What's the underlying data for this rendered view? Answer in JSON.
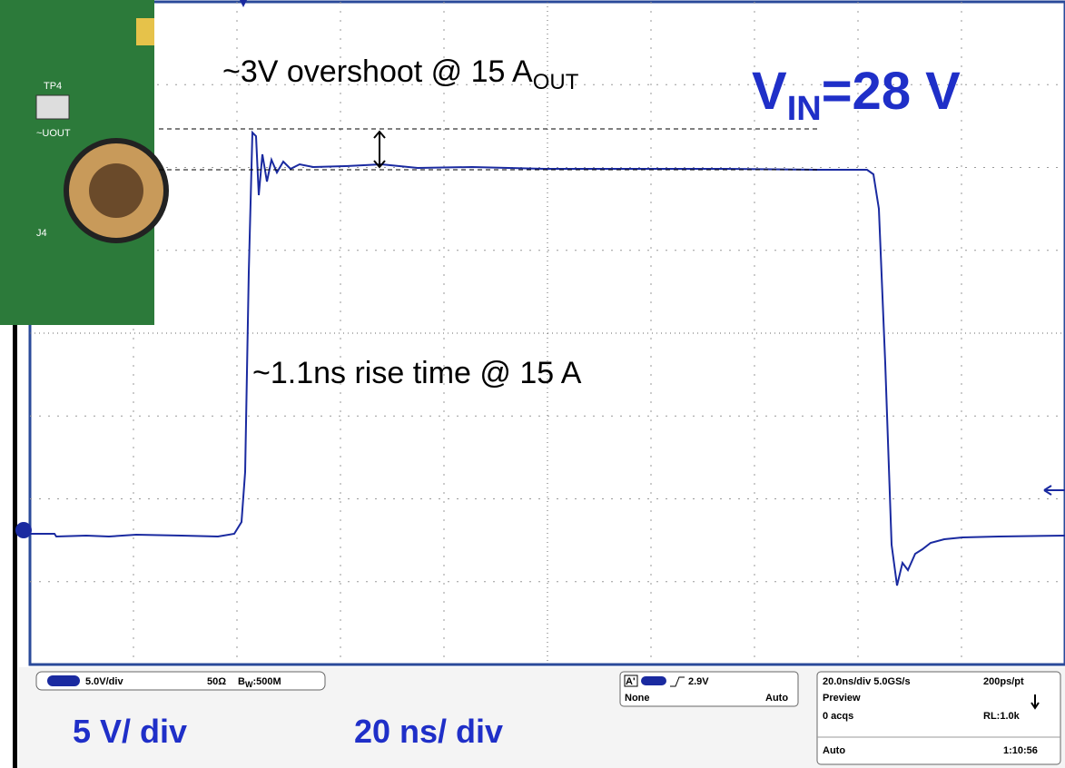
{
  "annotations": {
    "overshoot": {
      "text": "~3V overshoot @ 15 A",
      "sub": "OUT"
    },
    "vin": {
      "main": "V",
      "sub": "IN",
      "rest": "=28 V"
    },
    "rise": "~1.1ns rise time @ 15 A",
    "vdiv": "5 V/ div",
    "tdiv": "20 ns/ div"
  },
  "photo": {
    "tp": "TP4",
    "vout": "~UOUT",
    "jack": "J4"
  },
  "status": {
    "channel": {
      "scale": "5.0V/div",
      "impedance": "50Ω",
      "bw": "B",
      "bw_sub": "W",
      "bw_value": ":500M"
    },
    "trigger": {
      "source": "A'",
      "level": "2.9V",
      "coupling": "None",
      "mode": "Auto"
    },
    "acquisition": {
      "timebase": "20.0ns/div 5.0GS/s",
      "resolution": "200ps/pt",
      "state": "Preview",
      "acqs": "0 acqs",
      "record": "RL:1.0k",
      "mode": "Auto",
      "time": "1:10:56"
    }
  }
}
